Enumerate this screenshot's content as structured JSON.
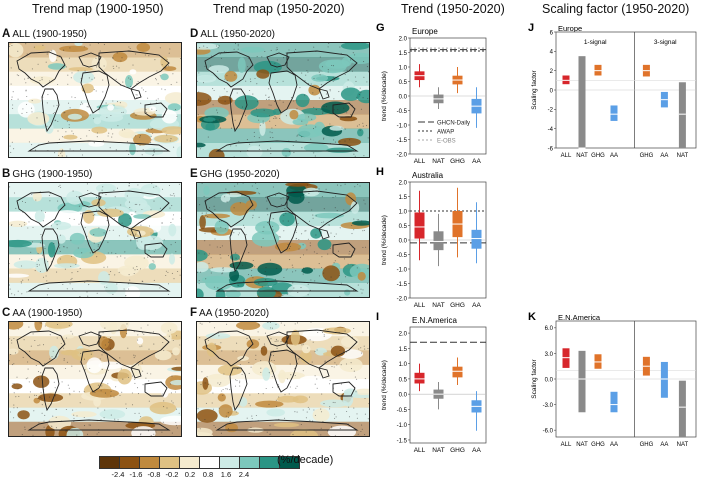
{
  "headers": {
    "col1": "Trend map (1900-1950)",
    "col2": "Trend map (1950-2020)",
    "col3": "Trend (1950-2020)",
    "col4": "Scaling factor (1950-2020)"
  },
  "maps": [
    {
      "letter": "A",
      "label": "ALL (1900-1950)",
      "tone": "mixed"
    },
    {
      "letter": "B",
      "label": "GHG (1900-1950)",
      "tone": "wet"
    },
    {
      "letter": "C",
      "label": "AA (1900-1950)",
      "tone": "dry"
    },
    {
      "letter": "D",
      "label": "ALL (1950-2020)",
      "tone": "wetstrong"
    },
    {
      "letter": "E",
      "label": "GHG (1950-2020)",
      "tone": "wetstrong"
    },
    {
      "letter": "F",
      "label": "AA (1950-2020)",
      "tone": "dry"
    }
  ],
  "colorbar": {
    "ticks": [
      "-2.4",
      "-1.6",
      "-0.8",
      "-0.2",
      "0.2",
      "0.8",
      "1.6",
      "2.4"
    ],
    "colors": [
      "#5e3509",
      "#8c5213",
      "#c08a3e",
      "#dfc183",
      "#f5ebcf",
      "#ffffff",
      "#cdebe6",
      "#7cc8bc",
      "#2b9585",
      "#005a4c"
    ],
    "unit": "(%/decade)"
  },
  "chart_data": [
    {
      "type": "box",
      "letter": "G",
      "region": "Europe",
      "ylabel": "trend (%/decade)",
      "ylim": [
        -2.0,
        2.0
      ],
      "yticks": [
        "2.0",
        "1.5",
        "1.0",
        "0.5",
        "0.0",
        "-0.5",
        "-1.0",
        "-1.5",
        "-2.0"
      ],
      "categories": [
        "ALL",
        "NAT",
        "GHG",
        "AA"
      ],
      "boxes": [
        {
          "cat": "ALL",
          "min": 0.3,
          "q1": 0.55,
          "med": 0.7,
          "q3": 0.85,
          "max": 1.1,
          "color": "#d7262b"
        },
        {
          "cat": "NAT",
          "min": -0.45,
          "q1": -0.25,
          "med": -0.1,
          "q3": 0.05,
          "max": 0.3,
          "color": "#8a8a8a"
        },
        {
          "cat": "GHG",
          "min": 0.1,
          "q1": 0.4,
          "med": 0.55,
          "q3": 0.7,
          "max": 1.0,
          "color": "#e0732a"
        },
        {
          "cat": "AA",
          "min": -1.1,
          "q1": -0.6,
          "med": -0.35,
          "q3": -0.1,
          "max": 0.3,
          "color": "#5b9fe6"
        }
      ],
      "observations": [
        {
          "label": "GHCN-Daily",
          "value": 1.6,
          "dash": "7,3",
          "color": "#333333"
        },
        {
          "label": "AWAP",
          "value": 1.55,
          "dash": "2,2",
          "color": "#333333"
        },
        {
          "label": "E-OBS",
          "value": 1.65,
          "dash": "2,2",
          "color": "#aaaaaa"
        }
      ],
      "legend": [
        "GHCN-Daily",
        "AWAP",
        "E-OBS"
      ]
    },
    {
      "type": "box",
      "letter": "H",
      "region": "Australia",
      "ylabel": "trend (%/decade)",
      "ylim": [
        -2.0,
        2.0
      ],
      "yticks": [
        "2.0",
        "1.5",
        "1.0",
        "0.5",
        "0.0",
        "-0.5",
        "-1.0",
        "-1.5",
        "-2.0"
      ],
      "categories": [
        "ALL",
        "NAT",
        "GHG",
        "AA"
      ],
      "boxes": [
        {
          "cat": "ALL",
          "min": -0.7,
          "q1": 0.05,
          "med": 0.45,
          "q3": 0.95,
          "max": 1.7,
          "color": "#d7262b"
        },
        {
          "cat": "NAT",
          "min": -0.9,
          "q1": -0.35,
          "med": -0.05,
          "q3": 0.3,
          "max": 0.9,
          "color": "#8a8a8a"
        },
        {
          "cat": "GHG",
          "min": -0.6,
          "q1": 0.1,
          "med": 0.55,
          "q3": 1.0,
          "max": 1.8,
          "color": "#e0732a"
        },
        {
          "cat": "AA",
          "min": -0.8,
          "q1": -0.3,
          "med": 0.05,
          "q3": 0.35,
          "max": 1.3,
          "color": "#5b9fe6"
        }
      ],
      "observations": [
        {
          "label": "GHCN-Daily",
          "value": -0.1,
          "dash": "7,3",
          "color": "#333333"
        },
        {
          "label": "AWAP",
          "value": 1.0,
          "dash": "2,2",
          "color": "#333333"
        }
      ],
      "legend": []
    },
    {
      "type": "box",
      "letter": "I",
      "region": "E.N.America",
      "ylabel": "trend (%/decade)",
      "ylim": [
        -1.6,
        2.2
      ],
      "yticks": [
        "2.0",
        "1.5",
        "1.0",
        "0.5",
        "0.0",
        "-0.5",
        "-1.0",
        "-1.5"
      ],
      "categories": [
        "ALL",
        "NAT",
        "GHG",
        "AA"
      ],
      "boxes": [
        {
          "cat": "ALL",
          "min": 0.1,
          "q1": 0.35,
          "med": 0.5,
          "q3": 0.7,
          "max": 1.0,
          "color": "#d7262b"
        },
        {
          "cat": "NAT",
          "min": -0.5,
          "q1": -0.15,
          "med": 0.0,
          "q3": 0.15,
          "max": 0.4,
          "color": "#8a8a8a"
        },
        {
          "cat": "GHG",
          "min": 0.3,
          "q1": 0.55,
          "med": 0.75,
          "q3": 0.9,
          "max": 1.2,
          "color": "#e0732a"
        },
        {
          "cat": "AA",
          "min": -1.2,
          "q1": -0.6,
          "med": -0.4,
          "q3": -0.2,
          "max": 0.1,
          "color": "#5b9fe6"
        }
      ],
      "observations": [
        {
          "label": "GHCN-Daily",
          "value": 1.7,
          "dash": "7,3",
          "color": "#333333"
        }
      ],
      "legend": []
    },
    {
      "type": "scaling",
      "letter": "J",
      "region": "Europe",
      "ylabel": "Scaling factor",
      "ylim": [
        -6,
        6
      ],
      "yticks": [
        "6",
        "4",
        "2",
        "0",
        "-2",
        "-4",
        "-6"
      ],
      "groups": [
        "1-signal",
        "3-signal"
      ],
      "categories": [
        "ALL",
        "NAT",
        "GHG",
        "AA",
        "GHG",
        "AA",
        "NAT"
      ],
      "bars": [
        {
          "cat": "ALL",
          "group": 0,
          "lo": 0.6,
          "best": 1.0,
          "hi": 1.5,
          "color": "#d7262b"
        },
        {
          "cat": "NAT",
          "group": 0,
          "lo": -8,
          "best": -6,
          "hi": 3.5,
          "color": "#8a8a8a"
        },
        {
          "cat": "GHG",
          "group": 0,
          "lo": 1.5,
          "best": 2.0,
          "hi": 2.6,
          "color": "#e0732a"
        },
        {
          "cat": "AA",
          "group": 0,
          "lo": -3.2,
          "best": -2.5,
          "hi": -1.6,
          "color": "#5b9fe6"
        },
        {
          "cat": "GHG",
          "group": 1,
          "lo": 1.4,
          "best": 2.0,
          "hi": 2.6,
          "color": "#e0732a"
        },
        {
          "cat": "AA",
          "group": 1,
          "lo": -1.8,
          "best": -1.0,
          "hi": -0.2,
          "color": "#5b9fe6"
        },
        {
          "cat": "NAT",
          "group": 1,
          "lo": -6.2,
          "best": -2.5,
          "hi": 0.8,
          "color": "#8a8a8a"
        }
      ]
    },
    {
      "type": "scaling",
      "letter": "K",
      "region": "E.N.America",
      "ylabel": "Scaling factor",
      "ylim": [
        -6.8,
        6.8
      ],
      "yticks": [
        "6.0",
        "3.0",
        "0.0",
        "-3.0",
        "-6.0"
      ],
      "groups": [],
      "categories": [
        "ALL",
        "NAT",
        "GHG",
        "AA",
        "GHG",
        "AA",
        "NAT"
      ],
      "bars": [
        {
          "cat": "ALL",
          "group": 0,
          "lo": 1.3,
          "best": 2.5,
          "hi": 3.6,
          "color": "#d7262b"
        },
        {
          "cat": "NAT",
          "group": 0,
          "lo": -3.9,
          "best": 0.0,
          "hi": 3.3,
          "color": "#8a8a8a"
        },
        {
          "cat": "GHG",
          "group": 0,
          "lo": 1.2,
          "best": 2.0,
          "hi": 2.9,
          "color": "#e0732a"
        },
        {
          "cat": "AA",
          "group": 0,
          "lo": -3.9,
          "best": -3.0,
          "hi": -1.5,
          "color": "#5b9fe6"
        },
        {
          "cat": "GHG",
          "group": 1,
          "lo": 0.4,
          "best": 1.5,
          "hi": 2.6,
          "color": "#e0732a"
        },
        {
          "cat": "AA",
          "group": 1,
          "lo": -2.2,
          "best": 0.0,
          "hi": 2.0,
          "color": "#5b9fe6"
        },
        {
          "cat": "NAT",
          "group": 1,
          "lo": -6.8,
          "best": -3.3,
          "hi": -0.2,
          "color": "#8a8a8a"
        }
      ]
    }
  ]
}
